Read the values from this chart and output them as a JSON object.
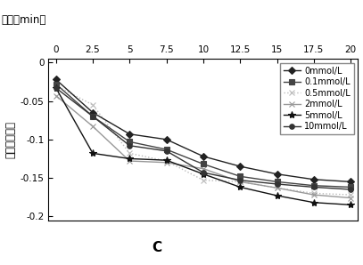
{
  "x": [
    0,
    2.5,
    5,
    7.5,
    10,
    12.5,
    15,
    17.5,
    20
  ],
  "series": [
    {
      "label": "0mmol/L",
      "values": [
        -0.022,
        -0.065,
        -0.093,
        -0.1,
        -0.122,
        -0.135,
        -0.145,
        -0.152,
        -0.155
      ],
      "color": "#222222",
      "marker": "D",
      "linestyle": "-",
      "markersize": 4,
      "linewidth": 1.0,
      "zorder": 3
    },
    {
      "label": "0.1mmol/L",
      "values": [
        -0.028,
        -0.07,
        -0.103,
        -0.113,
        -0.132,
        -0.148,
        -0.155,
        -0.16,
        -0.162
      ],
      "color": "#444444",
      "marker": "s",
      "linestyle": "-",
      "markersize": 4,
      "linewidth": 1.0,
      "zorder": 3
    },
    {
      "label": "0.5mmol/L",
      "values": [
        -0.03,
        -0.055,
        -0.118,
        -0.128,
        -0.153,
        -0.155,
        -0.163,
        -0.17,
        -0.172
      ],
      "color": "#bbbbbb",
      "marker": "x",
      "linestyle": ":",
      "markersize": 5,
      "linewidth": 1.0,
      "zorder": 2
    },
    {
      "label": "2mmol/L",
      "values": [
        -0.043,
        -0.083,
        -0.128,
        -0.13,
        -0.138,
        -0.155,
        -0.163,
        -0.172,
        -0.176
      ],
      "color": "#999999",
      "marker": "x",
      "linestyle": "-",
      "markersize": 5,
      "linewidth": 1.0,
      "zorder": 2
    },
    {
      "label": "5mmol/L",
      "values": [
        -0.033,
        -0.118,
        -0.125,
        -0.127,
        -0.145,
        -0.162,
        -0.173,
        -0.182,
        -0.185
      ],
      "color": "#111111",
      "marker": "*",
      "linestyle": "-",
      "markersize": 6,
      "linewidth": 1.0,
      "zorder": 3
    },
    {
      "label": "10mmol/L",
      "values": [
        -0.033,
        -0.07,
        -0.108,
        -0.115,
        -0.143,
        -0.153,
        -0.158,
        -0.162,
        -0.165
      ],
      "color": "#333333",
      "marker": "o",
      "linestyle": "-",
      "markersize": 4,
      "linewidth": 1.0,
      "zorder": 3
    }
  ],
  "xlabel": "时间（min）",
  "ylabel": "吸光度荧灭値",
  "bottom_label": "C",
  "xlim": [
    -0.5,
    20.5
  ],
  "ylim": [
    -0.205,
    0.005
  ],
  "xticks": [
    0,
    2.5,
    5,
    7.5,
    10,
    12.5,
    15,
    17.5,
    20
  ],
  "yticks": [
    0,
    -0.05,
    -0.1,
    -0.15,
    -0.2
  ],
  "background_color": "#ffffff",
  "legend_fontsize": 7.0,
  "axis_fontsize": 8.5,
  "tick_fontsize": 7.5
}
